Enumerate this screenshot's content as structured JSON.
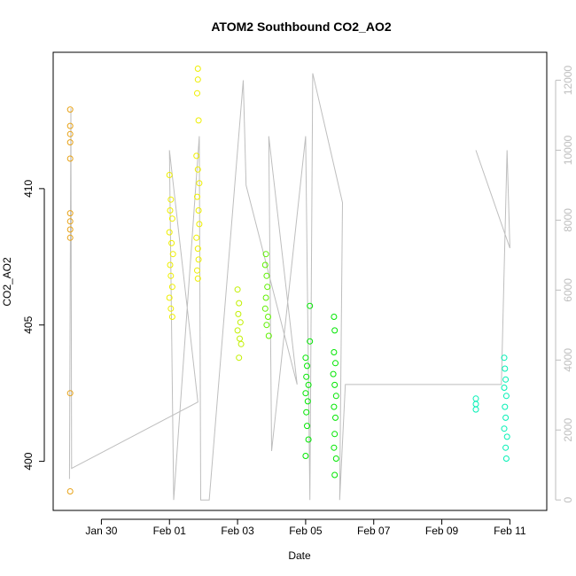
{
  "chart_data": {
    "type": "scatter",
    "title": "ATOM2 Southbound CO2_AO2",
    "xlabel": "Date",
    "ylabel": "CO2_AO2",
    "x_axis": {
      "type": "date",
      "range": [
        "2019-01-28T14:00",
        "2019-02-12T02:00"
      ],
      "ticks": [
        {
          "value": "2019-01-30",
          "label": "Jan 30"
        },
        {
          "value": "2019-02-01",
          "label": "Feb 01"
        },
        {
          "value": "2019-02-03",
          "label": "Feb 03"
        },
        {
          "value": "2019-02-05",
          "label": "Feb 05"
        },
        {
          "value": "2019-02-07",
          "label": "Feb 07"
        },
        {
          "value": "2019-02-09",
          "label": "Feb 09"
        },
        {
          "value": "2019-02-11",
          "label": "Feb 11"
        }
      ]
    },
    "y_axis": {
      "range": [
        398.2,
        415.0
      ],
      "ticks": [
        {
          "value": 400,
          "label": "400"
        },
        {
          "value": 405,
          "label": "405"
        },
        {
          "value": 410,
          "label": "410"
        }
      ]
    },
    "y2_axis": {
      "range": [
        -300,
        12800
      ],
      "color": "#bebebe",
      "ticks": [
        {
          "value": 0,
          "label": "0"
        },
        {
          "value": 2000,
          "label": "2000"
        },
        {
          "value": 4000,
          "label": "4000"
        },
        {
          "value": 6000,
          "label": "6000"
        },
        {
          "value": 8000,
          "label": "8000"
        },
        {
          "value": 10000,
          "label": "10000"
        },
        {
          "value": 12000,
          "label": "12000"
        }
      ]
    },
    "grid": false,
    "legend": "none",
    "series": [
      {
        "marker": "open-circle",
        "colors": {
          "orange": "#e8a318",
          "yellow": "#eeee00",
          "yellow_green": "#c2f000",
          "green": "#5ef000",
          "bright_green": "#00e600",
          "teal": "#00f0b4"
        },
        "points": [
          {
            "x": "2019-01-29T02:00",
            "y": 412.9,
            "c": "orange"
          },
          {
            "x": "2019-01-29T02:00",
            "y": 412.3,
            "c": "orange"
          },
          {
            "x": "2019-01-29T02:00",
            "y": 412.0,
            "c": "orange"
          },
          {
            "x": "2019-01-29T02:00",
            "y": 411.7,
            "c": "orange"
          },
          {
            "x": "2019-01-29T02:00",
            "y": 411.1,
            "c": "orange"
          },
          {
            "x": "2019-01-29T02:00",
            "y": 409.1,
            "c": "orange"
          },
          {
            "x": "2019-01-29T02:00",
            "y": 408.8,
            "c": "orange"
          },
          {
            "x": "2019-01-29T02:00",
            "y": 408.5,
            "c": "orange"
          },
          {
            "x": "2019-01-29T02:00",
            "y": 408.2,
            "c": "orange"
          },
          {
            "x": "2019-01-29T02:00",
            "y": 402.5,
            "c": "orange"
          },
          {
            "x": "2019-01-29T02:00",
            "y": 398.9,
            "c": "orange"
          },
          {
            "x": "2019-02-01T00:00",
            "y": 410.5,
            "c": "yellow"
          },
          {
            "x": "2019-02-01T01:00",
            "y": 409.6,
            "c": "yellow"
          },
          {
            "x": "2019-02-01T00:30",
            "y": 409.2,
            "c": "yellow"
          },
          {
            "x": "2019-02-01T02:00",
            "y": 408.9,
            "c": "yellow"
          },
          {
            "x": "2019-02-01T00:00",
            "y": 408.4,
            "c": "yellow"
          },
          {
            "x": "2019-02-01T01:30",
            "y": 408.0,
            "c": "yellow"
          },
          {
            "x": "2019-02-01T02:30",
            "y": 407.6,
            "c": "yellow"
          },
          {
            "x": "2019-02-01T00:30",
            "y": 407.2,
            "c": "yellow"
          },
          {
            "x": "2019-02-01T01:00",
            "y": 406.8,
            "c": "yellow"
          },
          {
            "x": "2019-02-01T02:00",
            "y": 406.4,
            "c": "yellow"
          },
          {
            "x": "2019-02-01T00:00",
            "y": 406.0,
            "c": "yellow"
          },
          {
            "x": "2019-02-01T01:00",
            "y": 405.6,
            "c": "yellow"
          },
          {
            "x": "2019-02-01T02:00",
            "y": 405.3,
            "c": "yellow"
          },
          {
            "x": "2019-02-01T20:00",
            "y": 414.4,
            "c": "yellow"
          },
          {
            "x": "2019-02-01T20:00",
            "y": 414.0,
            "c": "yellow"
          },
          {
            "x": "2019-02-01T19:30",
            "y": 413.5,
            "c": "yellow"
          },
          {
            "x": "2019-02-01T20:30",
            "y": 412.5,
            "c": "yellow"
          },
          {
            "x": "2019-02-01T19:00",
            "y": 411.2,
            "c": "yellow"
          },
          {
            "x": "2019-02-01T20:00",
            "y": 410.7,
            "c": "yellow"
          },
          {
            "x": "2019-02-01T21:00",
            "y": 410.2,
            "c": "yellow"
          },
          {
            "x": "2019-02-01T19:30",
            "y": 409.7,
            "c": "yellow"
          },
          {
            "x": "2019-02-01T20:30",
            "y": 409.2,
            "c": "yellow"
          },
          {
            "x": "2019-02-01T21:00",
            "y": 408.7,
            "c": "yellow"
          },
          {
            "x": "2019-02-01T19:00",
            "y": 408.2,
            "c": "yellow"
          },
          {
            "x": "2019-02-01T20:00",
            "y": 407.8,
            "c": "yellow"
          },
          {
            "x": "2019-02-01T20:30",
            "y": 407.4,
            "c": "yellow"
          },
          {
            "x": "2019-02-01T19:30",
            "y": 407.0,
            "c": "yellow"
          },
          {
            "x": "2019-02-01T20:00",
            "y": 406.7,
            "c": "yellow"
          },
          {
            "x": "2019-02-03T00:00",
            "y": 406.3,
            "c": "yellow_green"
          },
          {
            "x": "2019-02-03T01:00",
            "y": 405.8,
            "c": "yellow_green"
          },
          {
            "x": "2019-02-03T00:30",
            "y": 405.4,
            "c": "yellow_green"
          },
          {
            "x": "2019-02-03T02:00",
            "y": 405.1,
            "c": "yellow_green"
          },
          {
            "x": "2019-02-03T00:00",
            "y": 404.8,
            "c": "yellow_green"
          },
          {
            "x": "2019-02-03T01:30",
            "y": 404.5,
            "c": "yellow_green"
          },
          {
            "x": "2019-02-03T02:30",
            "y": 404.3,
            "c": "yellow_green"
          },
          {
            "x": "2019-02-03T01:00",
            "y": 403.8,
            "c": "yellow_green"
          },
          {
            "x": "2019-02-03T20:00",
            "y": 407.6,
            "c": "green"
          },
          {
            "x": "2019-02-03T19:30",
            "y": 407.2,
            "c": "green"
          },
          {
            "x": "2019-02-03T20:30",
            "y": 406.8,
            "c": "green"
          },
          {
            "x": "2019-02-03T21:00",
            "y": 406.4,
            "c": "green"
          },
          {
            "x": "2019-02-03T20:00",
            "y": 406.0,
            "c": "green"
          },
          {
            "x": "2019-02-03T19:30",
            "y": 405.6,
            "c": "green"
          },
          {
            "x": "2019-02-03T21:30",
            "y": 405.3,
            "c": "green"
          },
          {
            "x": "2019-02-03T20:30",
            "y": 405.0,
            "c": "green"
          },
          {
            "x": "2019-02-03T22:00",
            "y": 404.6,
            "c": "green"
          },
          {
            "x": "2019-02-05T00:00",
            "y": 403.8,
            "c": "bright_green"
          },
          {
            "x": "2019-02-05T01:00",
            "y": 403.5,
            "c": "bright_green"
          },
          {
            "x": "2019-02-05T00:30",
            "y": 403.1,
            "c": "bright_green"
          },
          {
            "x": "2019-02-05T02:00",
            "y": 402.8,
            "c": "bright_green"
          },
          {
            "x": "2019-02-05T00:00",
            "y": 402.5,
            "c": "bright_green"
          },
          {
            "x": "2019-02-05T01:30",
            "y": 402.2,
            "c": "bright_green"
          },
          {
            "x": "2019-02-05T00:30",
            "y": 401.8,
            "c": "bright_green"
          },
          {
            "x": "2019-02-05T01:00",
            "y": 401.3,
            "c": "bright_green"
          },
          {
            "x": "2019-02-05T02:00",
            "y": 400.8,
            "c": "bright_green"
          },
          {
            "x": "2019-02-05T00:00",
            "y": 400.2,
            "c": "bright_green"
          },
          {
            "x": "2019-02-05T03:00",
            "y": 405.7,
            "c": "bright_green"
          },
          {
            "x": "2019-02-05T03:00",
            "y": 404.4,
            "c": "bright_green"
          },
          {
            "x": "2019-02-05T20:00",
            "y": 405.3,
            "c": "bright_green"
          },
          {
            "x": "2019-02-05T20:30",
            "y": 404.8,
            "c": "bright_green"
          },
          {
            "x": "2019-02-05T20:00",
            "y": 404.0,
            "c": "bright_green"
          },
          {
            "x": "2019-02-05T21:00",
            "y": 403.6,
            "c": "bright_green"
          },
          {
            "x": "2019-02-05T19:30",
            "y": 403.2,
            "c": "bright_green"
          },
          {
            "x": "2019-02-05T20:30",
            "y": 402.8,
            "c": "bright_green"
          },
          {
            "x": "2019-02-05T21:30",
            "y": 402.4,
            "c": "bright_green"
          },
          {
            "x": "2019-02-05T20:00",
            "y": 402.0,
            "c": "bright_green"
          },
          {
            "x": "2019-02-05T21:00",
            "y": 401.6,
            "c": "bright_green"
          },
          {
            "x": "2019-02-05T20:30",
            "y": 401.0,
            "c": "bright_green"
          },
          {
            "x": "2019-02-05T20:00",
            "y": 400.5,
            "c": "bright_green"
          },
          {
            "x": "2019-02-05T21:30",
            "y": 400.1,
            "c": "bright_green"
          },
          {
            "x": "2019-02-05T20:30",
            "y": 399.5,
            "c": "bright_green"
          },
          {
            "x": "2019-02-10T00:00",
            "y": 402.3,
            "c": "teal"
          },
          {
            "x": "2019-02-10T00:00",
            "y": 402.1,
            "c": "teal"
          },
          {
            "x": "2019-02-10T00:00",
            "y": 401.9,
            "c": "teal"
          },
          {
            "x": "2019-02-10T20:00",
            "y": 403.8,
            "c": "teal"
          },
          {
            "x": "2019-02-10T20:30",
            "y": 403.4,
            "c": "teal"
          },
          {
            "x": "2019-02-10T21:00",
            "y": 403.0,
            "c": "teal"
          },
          {
            "x": "2019-02-10T20:00",
            "y": 402.7,
            "c": "teal"
          },
          {
            "x": "2019-02-10T21:30",
            "y": 402.4,
            "c": "teal"
          },
          {
            "x": "2019-02-10T20:30",
            "y": 402.0,
            "c": "teal"
          },
          {
            "x": "2019-02-10T21:00",
            "y": 401.6,
            "c": "teal"
          },
          {
            "x": "2019-02-10T20:00",
            "y": 401.2,
            "c": "teal"
          },
          {
            "x": "2019-02-10T22:00",
            "y": 400.9,
            "c": "teal"
          },
          {
            "x": "2019-02-10T21:00",
            "y": 400.5,
            "c": "teal"
          },
          {
            "x": "2019-02-10T21:30",
            "y": 400.1,
            "c": "teal"
          }
        ]
      },
      {
        "axis": "right",
        "type": "line",
        "color": "#bebebe",
        "points": [
          {
            "x": "2019-01-29T01:30",
            "y": 600
          },
          {
            "x": "2019-01-29T02:30",
            "y": 11200
          },
          {
            "x": "2019-01-29T03:00",
            "y": 900
          },
          {
            "x": "2019-02-01T20:00",
            "y": 2800
          },
          {
            "x": "2019-02-01T00:00",
            "y": 10000
          },
          {
            "x": "2019-02-01T03:00",
            "y": 0
          },
          {
            "x": "2019-02-01T21:00",
            "y": 10400
          },
          {
            "x": "2019-02-01T22:00",
            "y": 0
          },
          {
            "x": "2019-02-02T04:00",
            "y": 0
          },
          {
            "x": "2019-02-03T04:00",
            "y": 12000
          },
          {
            "x": "2019-02-03T06:00",
            "y": 9000
          },
          {
            "x": "2019-02-04T18:00",
            "y": 3300
          },
          {
            "x": "2019-02-03T22:00",
            "y": 10400
          },
          {
            "x": "2019-02-04T00:00",
            "y": 1400
          },
          {
            "x": "2019-02-05T00:00",
            "y": 10400
          },
          {
            "x": "2019-02-05T03:00",
            "y": 0
          },
          {
            "x": "2019-02-05T05:00",
            "y": 12200
          },
          {
            "x": "2019-02-06T02:00",
            "y": 8500
          },
          {
            "x": "2019-02-06T00:00",
            "y": 0
          },
          {
            "x": "2019-02-06T04:00",
            "y": 3300
          },
          {
            "x": "2019-02-10T18:00",
            "y": 3300
          },
          {
            "x": "2019-02-10T22:00",
            "y": 10000
          },
          {
            "x": "2019-02-11T00:00",
            "y": 7200
          },
          {
            "x": "2019-02-10T00:00",
            "y": 10000
          }
        ]
      }
    ]
  }
}
